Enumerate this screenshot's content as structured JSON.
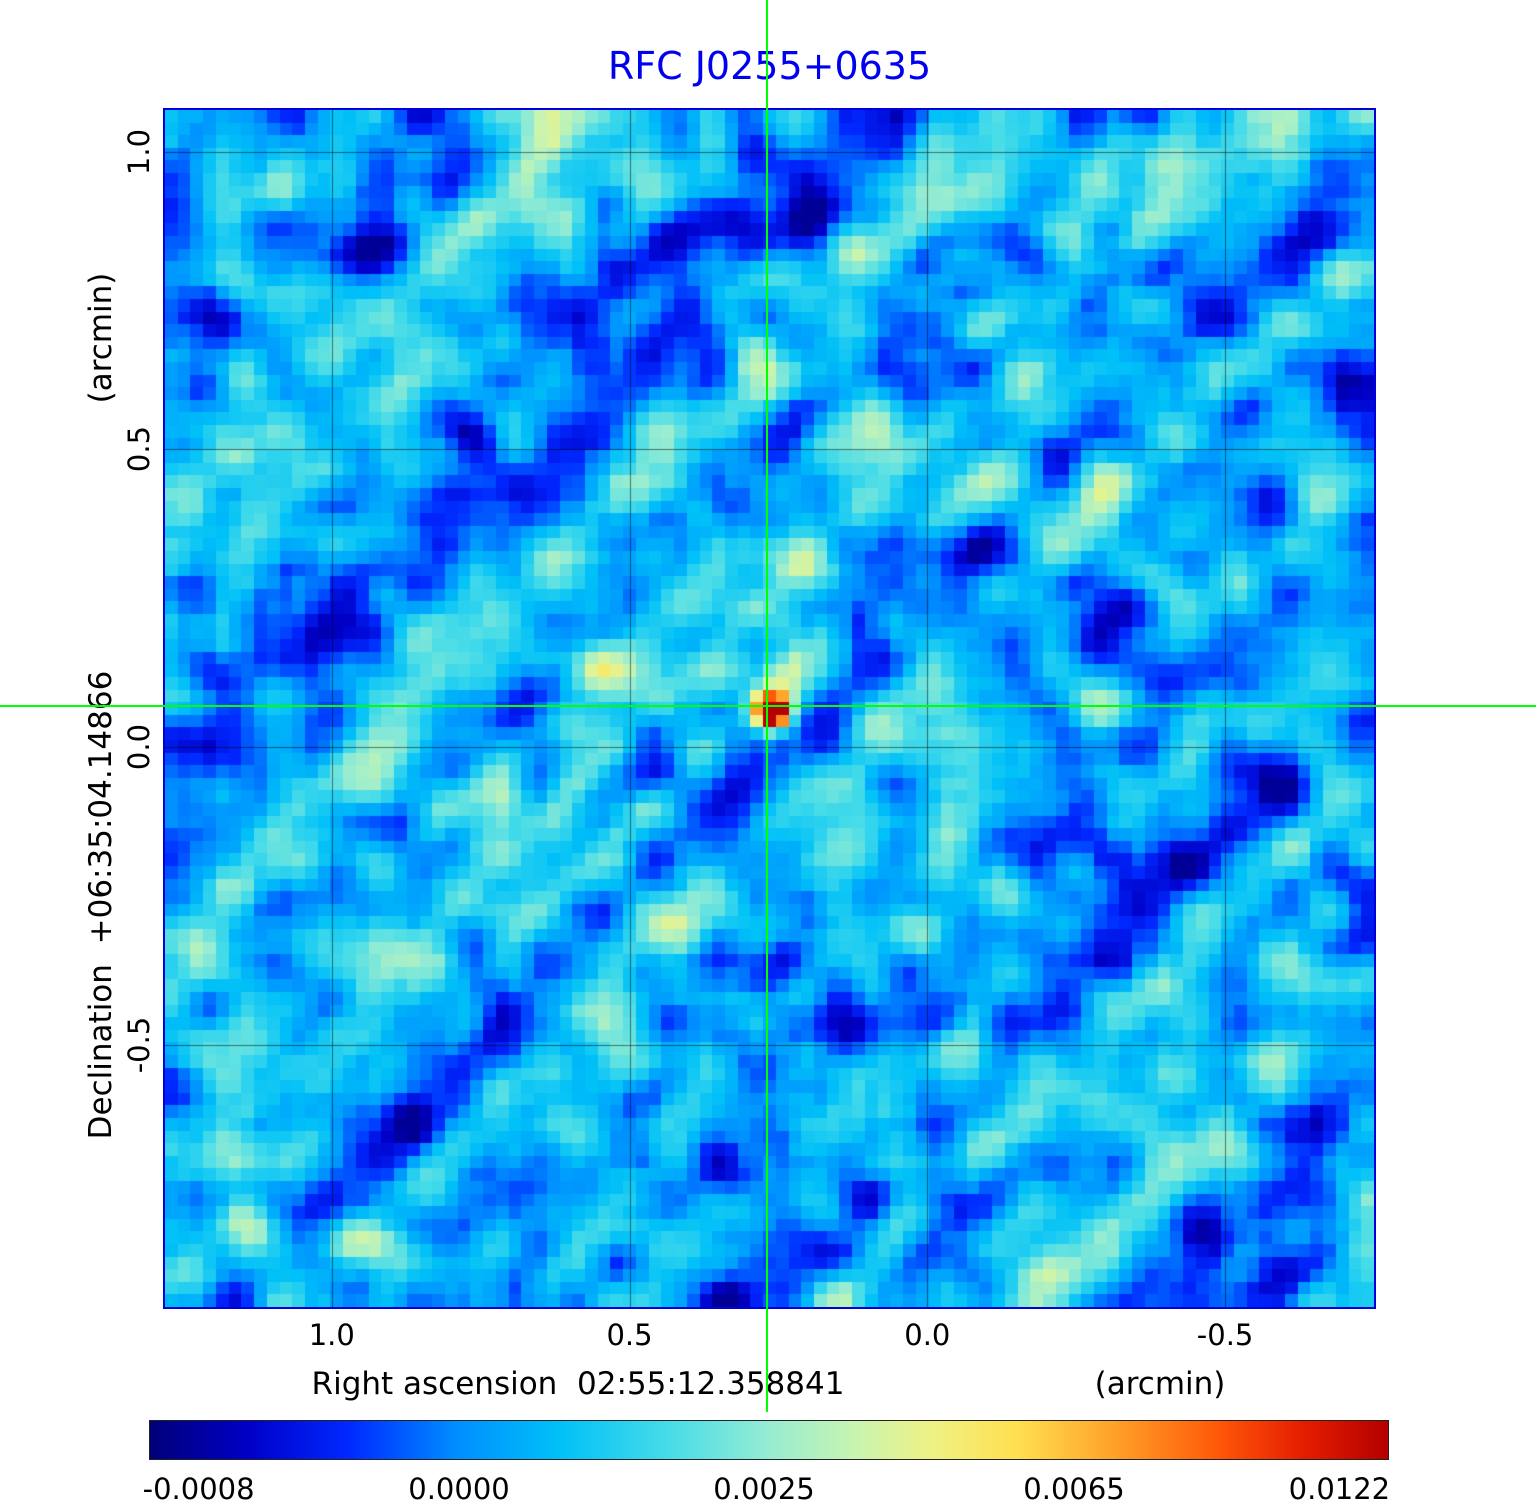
{
  "figure": {
    "title": "RFC J0255+0635"
  },
  "chart_data": {
    "type": "heatmap",
    "title": "RFC J0255+0635",
    "x_axis_label": "Right ascension  02:55:12.358841",
    "x_axis_unit": "(arcmin)",
    "y_axis_label": "Declination  +06:35:04.14866",
    "y_axis_unit": "(arcmin)",
    "x_tick_labels": [
      "1.0",
      "0.5",
      "0.0",
      "-0.5"
    ],
    "x_tick_values": [
      1.0,
      0.5,
      0.0,
      -0.5
    ],
    "y_tick_labels": [
      "1.0",
      "0.5",
      "0.0",
      "-0.5"
    ],
    "y_tick_values": [
      1.0,
      0.5,
      0.0,
      -0.5
    ],
    "x_range": [
      1.28,
      -0.75
    ],
    "y_range": [
      -0.94,
      1.07
    ],
    "grid": true,
    "crosshair": {
      "x_arcmin": 0.27,
      "y_arcmin": 0.07,
      "color": "#00ff00"
    },
    "source": {
      "x_arcmin": 0.27,
      "y_arcmin": 0.07,
      "peak_value": 0.0122,
      "blobs": [
        {
          "di": 0,
          "dj": 0,
          "amp": 0.72,
          "sigma": 0.9
        },
        {
          "di": 0,
          "dj": 0,
          "amp": 0.22,
          "sigma": 2.3
        },
        {
          "di": 1.2,
          "dj": -2.8,
          "amp": 0.12,
          "sigma": 1.6
        }
      ]
    },
    "noise": {
      "seed": 20255,
      "grid_cells": 95,
      "base_level": 0.3,
      "amplitude": 0.075,
      "streak_amplitude": 0.06,
      "background_mean_value": 0.0,
      "background_rms_value": 0.0005
    },
    "colormap_stops": [
      [
        0.0,
        "#000078"
      ],
      [
        0.08,
        "#0000c8"
      ],
      [
        0.16,
        "#0028ff"
      ],
      [
        0.25,
        "#0090ff"
      ],
      [
        0.33,
        "#00c0f8"
      ],
      [
        0.42,
        "#48dce8"
      ],
      [
        0.5,
        "#96ecd2"
      ],
      [
        0.57,
        "#c8f4b0"
      ],
      [
        0.63,
        "#eef286"
      ],
      [
        0.7,
        "#ffe050"
      ],
      [
        0.78,
        "#ffa028"
      ],
      [
        0.86,
        "#ff5a0a"
      ],
      [
        0.93,
        "#e61e00"
      ],
      [
        1.0,
        "#b40000"
      ]
    ],
    "colorbar": {
      "tick_labels": [
        "-0.0008",
        "0.0000",
        "0.0025",
        "0.0065",
        "0.0122"
      ],
      "tick_values": [
        -0.0008,
        0.0,
        0.0025,
        0.0065,
        0.0122
      ],
      "tick_positions": [
        0.04,
        0.25,
        0.496,
        0.746,
        0.96
      ],
      "scale": "nonlinear"
    }
  }
}
